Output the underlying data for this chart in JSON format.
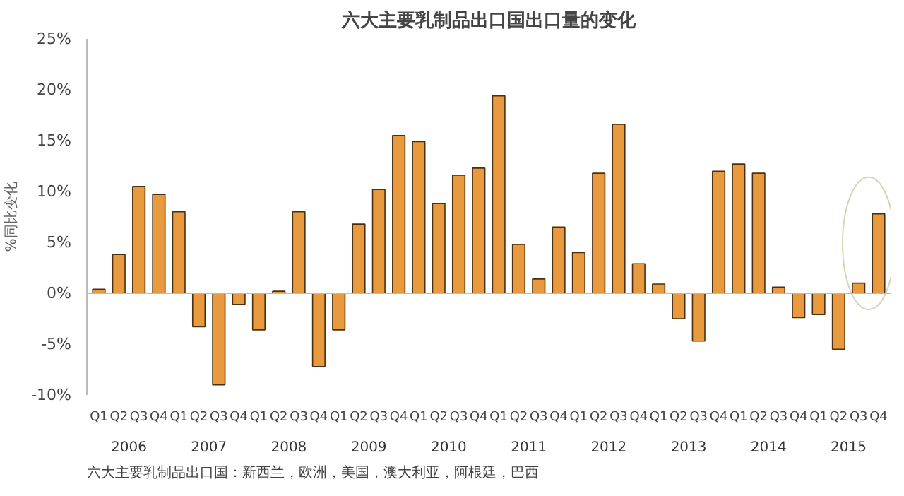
{
  "chart_data": {
    "type": "bar",
    "title": "六大主要乳制品出口国出口量的变化",
    "ylabel": "%同比变化",
    "categories": [
      "Q1",
      "Q2",
      "Q3",
      "Q4",
      "Q1",
      "Q2",
      "Q3",
      "Q4",
      "Q1",
      "Q2",
      "Q3",
      "Q4",
      "Q1",
      "Q2",
      "Q3",
      "Q4",
      "Q1",
      "Q2",
      "Q3",
      "Q4",
      "Q1",
      "Q2",
      "Q3",
      "Q4",
      "Q1",
      "Q2",
      "Q3",
      "Q4",
      "Q1",
      "Q2",
      "Q3",
      "Q4",
      "Q1",
      "Q2",
      "Q3",
      "Q4",
      "Q1",
      "Q2",
      "Q3",
      "Q4"
    ],
    "values": [
      0.4,
      3.8,
      10.5,
      9.7,
      8.0,
      -3.3,
      -9.0,
      -1.1,
      -3.6,
      0.2,
      8.0,
      -7.2,
      -3.6,
      6.8,
      10.2,
      15.5,
      14.9,
      8.8,
      11.6,
      12.3,
      19.4,
      4.8,
      1.4,
      6.5,
      4.0,
      11.8,
      16.6,
      2.9,
      0.9,
      -2.5,
      -4.7,
      12.0,
      12.7,
      11.8,
      0.6,
      -2.4,
      -2.1,
      -5.5,
      1.0,
      7.8
    ],
    "color": "#e99a3f",
    "ylim": [
      -10,
      25
    ],
    "yticks": [
      {
        "value": -10,
        "label": "-10%"
      },
      {
        "value": -5,
        "label": "-5%"
      },
      {
        "value": 0,
        "label": "0%"
      },
      {
        "value": 5,
        "label": "5%"
      },
      {
        "value": 10,
        "label": "10%"
      },
      {
        "value": 15,
        "label": "15%"
      },
      {
        "value": 20,
        "label": "20%"
      },
      {
        "value": 25,
        "label": "25%"
      }
    ],
    "ref_lines": [
      {
        "axis": "y",
        "value": 0,
        "color": "#bbbbbb"
      }
    ],
    "annotations": [
      "2006",
      "2007",
      "2008",
      "2009",
      "2010",
      "2011",
      "2012",
      "2013",
      "2014",
      "2015",
      "六大主要乳制品出口国：新西兰，欧洲，美国，澳大利亚，阿根廷，巴西"
    ]
  }
}
